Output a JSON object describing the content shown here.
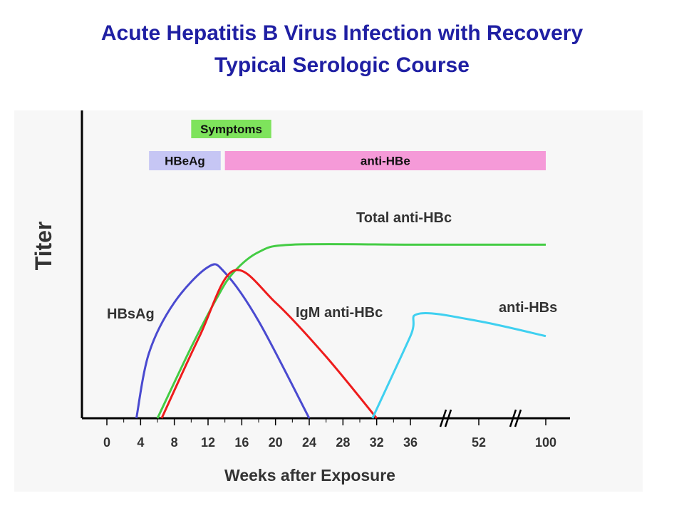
{
  "title": "Acute Hepatitis B Virus Infection with Recovery",
  "subtitle": "Typical Serologic Course",
  "chart_data": {
    "type": "line",
    "xlabel": "Weeks after Exposure",
    "ylabel": "Titer",
    "x_ticks": [
      "0",
      "4",
      "8",
      "12",
      "16",
      "20",
      "24",
      "28",
      "32",
      "36",
      "52",
      "100"
    ],
    "axis_breaks": true,
    "grid": false,
    "y_ticks": false,
    "bands": [
      {
        "label": "Symptoms",
        "color": "#7ee35c",
        "x_start": 10,
        "x_end": 19.5
      },
      {
        "label": "HBeAg",
        "color": "#c6c6f4",
        "x_start": 5,
        "x_end": 13.5
      },
      {
        "label": "anti-HBe",
        "color": "#f59ad8",
        "x_start": 14,
        "x_end": 100
      }
    ],
    "series": [
      {
        "name": "HBsAg",
        "color": "#4a4ad0",
        "points": [
          [
            3.5,
            0
          ],
          [
            5,
            35
          ],
          [
            8,
            62
          ],
          [
            12,
            81
          ],
          [
            14,
            78
          ],
          [
            18,
            52
          ],
          [
            24,
            0
          ]
        ]
      },
      {
        "name": "Total anti-HBc",
        "color": "#44cc44",
        "points": [
          [
            6,
            0
          ],
          [
            10,
            38
          ],
          [
            13,
            64
          ],
          [
            15,
            78
          ],
          [
            18,
            89
          ],
          [
            22,
            93
          ],
          [
            36,
            93
          ],
          [
            52,
            93
          ],
          [
            100,
            93
          ]
        ]
      },
      {
        "name": "IgM anti-HBc",
        "color": "#ee1c1c",
        "points": [
          [
            6.5,
            0
          ],
          [
            11,
            44
          ],
          [
            15,
            79
          ],
          [
            20,
            62
          ],
          [
            26,
            33
          ],
          [
            32,
            0
          ]
        ]
      },
      {
        "name": "anti-HBs",
        "color": "#3fd0f0",
        "points": [
          [
            31.5,
            0
          ],
          [
            36,
            44
          ],
          [
            38,
            56
          ],
          [
            52,
            52
          ],
          [
            100,
            44
          ]
        ]
      }
    ]
  }
}
